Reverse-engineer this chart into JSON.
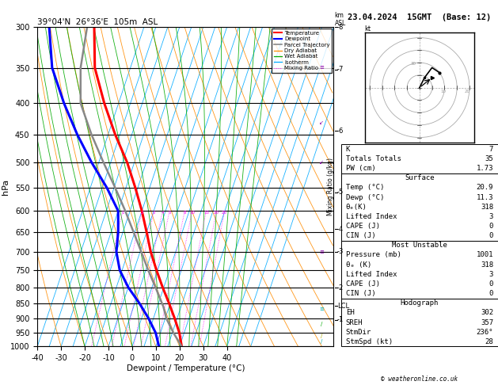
{
  "title_left": "39°04'N  26°36'E  105m  ASL",
  "title_right": "23.04.2024  15GMT  (Base: 12)",
  "xlabel": "Dewpoint / Temperature (°C)",
  "ylabel_left": "hPa",
  "temp_color": "#ff0000",
  "dewp_color": "#0000ff",
  "parcel_color": "#888888",
  "dry_adiabat_color": "#ff8c00",
  "wet_adiabat_color": "#00aa00",
  "isotherm_color": "#00aaff",
  "mixing_ratio_color": "#ff00ff",
  "background_color": "#ffffff",
  "temp_profile_p": [
    1000,
    950,
    900,
    850,
    800,
    750,
    700,
    650,
    600,
    550,
    500,
    450,
    400,
    350,
    300
  ],
  "temp_profile_t": [
    20.9,
    18.0,
    14.0,
    9.5,
    4.5,
    -0.5,
    -5.5,
    -10.0,
    -15.0,
    -21.0,
    -28.0,
    -37.0,
    -46.0,
    -55.0,
    -61.0
  ],
  "dewp_profile_p": [
    1000,
    950,
    900,
    850,
    800,
    750,
    700,
    650,
    600,
    550,
    500,
    450,
    400,
    350,
    300
  ],
  "dewp_profile_t": [
    11.3,
    8.0,
    3.0,
    -3.0,
    -10.0,
    -16.0,
    -20.0,
    -22.0,
    -25.0,
    -33.0,
    -43.0,
    -53.0,
    -63.0,
    -73.0,
    -80.0
  ],
  "parcel_profile_p": [
    1000,
    950,
    900,
    860,
    850,
    800,
    750,
    700,
    650,
    600,
    550,
    500,
    450,
    400,
    350,
    300
  ],
  "parcel_profile_t": [
    20.9,
    15.5,
    10.5,
    7.5,
    6.5,
    1.5,
    -4.0,
    -9.5,
    -15.5,
    -22.0,
    -29.5,
    -38.0,
    -47.0,
    -56.0,
    -61.0,
    -64.0
  ],
  "mixing_ratios": [
    1,
    2,
    3,
    4,
    5,
    8,
    10,
    15,
    20,
    25
  ],
  "pressure_levels": [
    300,
    350,
    400,
    450,
    500,
    550,
    600,
    650,
    700,
    750,
    800,
    850,
    900,
    950,
    1000
  ],
  "km_ticks": {
    "8": 300,
    "7": 352,
    "6": 444,
    "5": 559,
    "4": 643,
    "3": 700,
    "2": 802,
    "1": 904
  },
  "lcl_pressure": 858,
  "copyright": "© weatheronline.co.uk",
  "wind_color_purple": "#8800aa",
  "wind_color_cyan": "#00aaaa",
  "wind_color_yellow": "#aaaa00",
  "info": {
    "K": 7,
    "Totals Totals": 35,
    "PW_cm": 1.73,
    "surf_temp": 20.9,
    "surf_dewp": 11.3,
    "surf_theta_e": 318,
    "surf_li": 3,
    "surf_cape": 0,
    "surf_cin": 0,
    "mu_press": 1001,
    "mu_theta_e": 318,
    "mu_li": 3,
    "mu_cape": 0,
    "mu_cin": 0,
    "eh": 302,
    "sreh": 357,
    "stmdir": "236°",
    "stmspd": 28
  }
}
